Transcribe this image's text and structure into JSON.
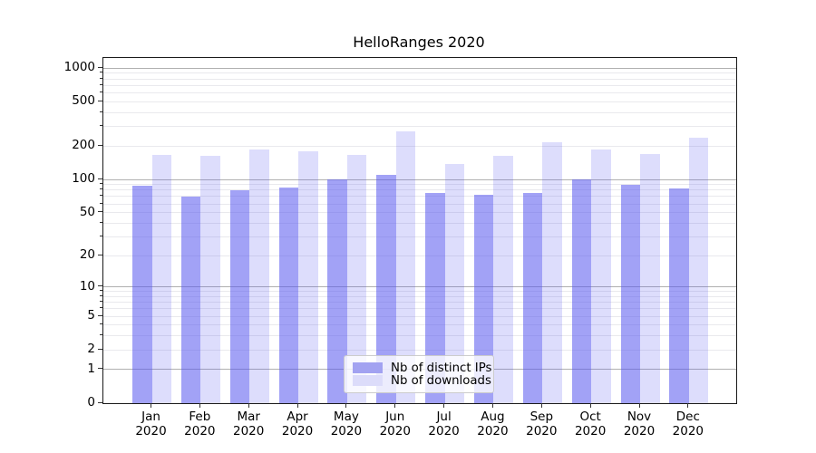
{
  "title": "HelloRanges 2020",
  "chart_data": {
    "type": "bar",
    "title": "HelloRanges 2020",
    "year": "2020",
    "months": [
      "Jan",
      "Feb",
      "Mar",
      "Apr",
      "May",
      "Jun",
      "Jul",
      "Aug",
      "Sep",
      "Oct",
      "Nov",
      "Dec"
    ],
    "series": [
      {
        "name": "Nb of distinct IPs",
        "color": "rgba(85,85,238,0.55)",
        "swatch": "#a2a2f1",
        "values": [
          87,
          70,
          80,
          85,
          100,
          111,
          75,
          72,
          76,
          101,
          89,
          83
        ]
      },
      {
        "name": "Nb of downloads",
        "color": "rgba(85,85,238,0.20)",
        "swatch": "#dcdcfa",
        "values": [
          168,
          163,
          187,
          178,
          166,
          270,
          139,
          164,
          217,
          188,
          171,
          238
        ]
      }
    ],
    "yscale": "log1p",
    "yticks": [
      0,
      1,
      2,
      5,
      10,
      20,
      50,
      100,
      200,
      500,
      1000
    ],
    "ylim": [
      0,
      1236
    ],
    "xlabel": "",
    "ylabel": "",
    "grid": "on",
    "grid_major_values": [
      1,
      10,
      100,
      1000
    ],
    "grid_major_color": "#b0b0b0",
    "grid_minor_color": "#e9e9ed",
    "axis_color": "#1a1a1a",
    "legend_position": "lower center"
  }
}
